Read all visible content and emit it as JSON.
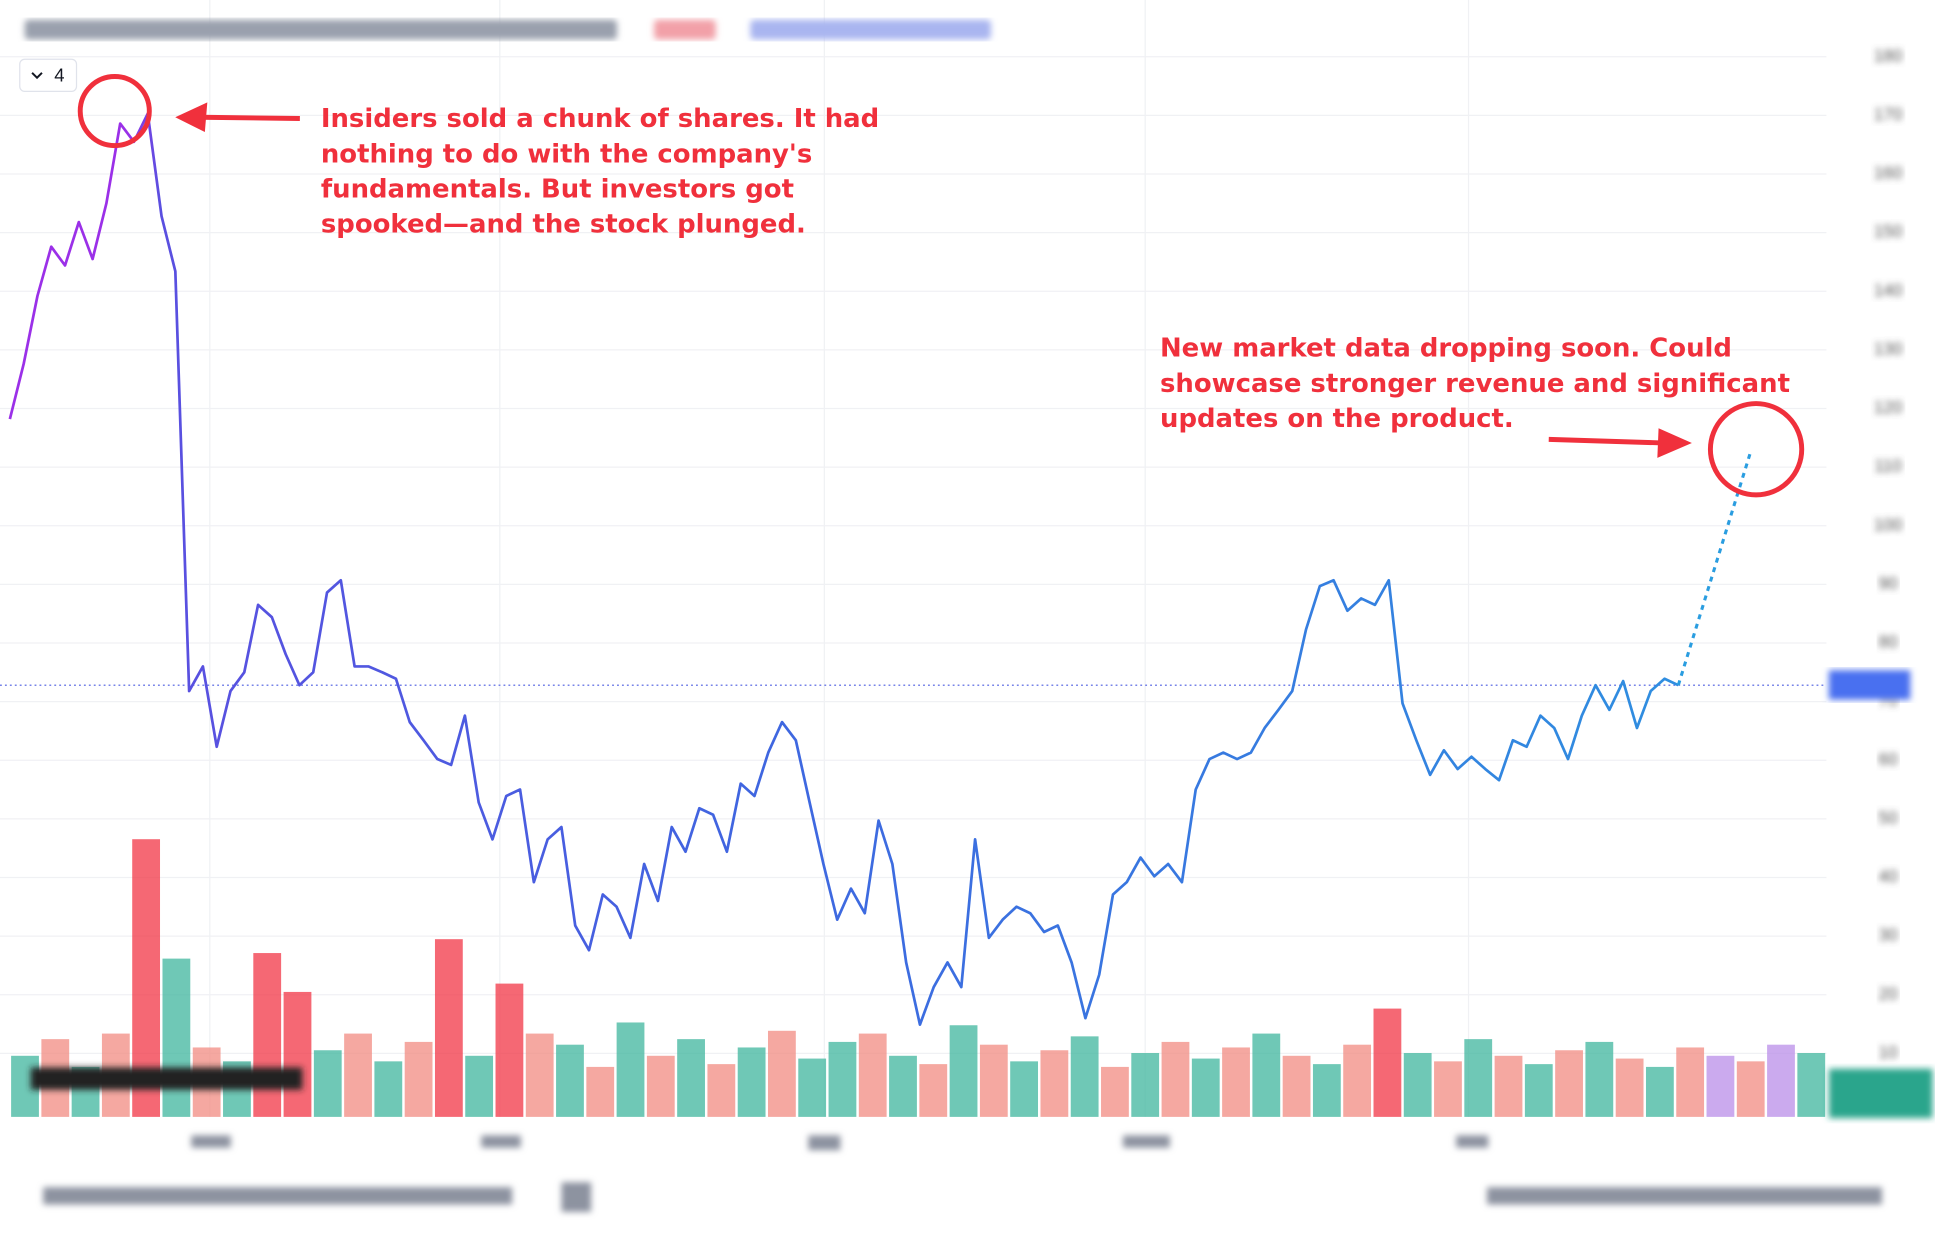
{
  "toolbar": {
    "interval": "4"
  },
  "annotations": [
    {
      "lines": [
        "Insiders sold a chunk of shares. It had",
        "nothing to do with the company's",
        "fundamentals. But investors got",
        "spooked—and the stock plunged."
      ]
    },
    {
      "lines": [
        "New market data dropping soon. Could",
        "showcase stronger revenue and significant",
        "updates on the product."
      ]
    }
  ],
  "chart_data": {
    "type": "line",
    "ylim": [
      0,
      180
    ],
    "yticks": [
      10,
      20,
      30,
      40,
      50,
      60,
      70,
      80,
      90,
      100,
      110,
      120,
      130,
      140,
      150,
      160,
      170,
      180
    ],
    "grid": true,
    "price_line": 72.8,
    "series": [
      {
        "colors": [
          "#9b30e8",
          "#9b30e8",
          "#5a4fe0",
          "#3f66e0",
          "#2f8ee0"
        ],
        "values": [
          118.2,
          127.6,
          139.2,
          147.6,
          144.4,
          151.8,
          145.5,
          155,
          168.6,
          165.5,
          170.3,
          152.8,
          143.4,
          71.8,
          76,
          62.3,
          71.8,
          75,
          86.5,
          84.4,
          78.1,
          72.8,
          75,
          88.6,
          90.7,
          76,
          76,
          75,
          73.9,
          66.5,
          63.4,
          60.2,
          59.2,
          67.6,
          52.8,
          46.5,
          53.9,
          55,
          39.2,
          46.5,
          48.6,
          31.8,
          27.6,
          37.1,
          35,
          29.7,
          42.3,
          36,
          48.6,
          44.4,
          51.8,
          50.7,
          44.4,
          56,
          53.9,
          61.3,
          66.5,
          63.4,
          52.8,
          42.3,
          32.8,
          38.1,
          33.9,
          49.7,
          42.3,
          25.5,
          14.9,
          21.3,
          25.5,
          21.3,
          46.5,
          29.7,
          32.8,
          35,
          33.9,
          30.7,
          31.8,
          25.5,
          16,
          23.4,
          37.1,
          39.2,
          43.4,
          40.2,
          42.3,
          39.2,
          55,
          60.2,
          61.3,
          60.2,
          61.3,
          65.5,
          68.6,
          71.8,
          82.3,
          89.7,
          90.7,
          85.5,
          87.6,
          86.5,
          90.7,
          69.7,
          63.4,
          57.5,
          61.7,
          58.5,
          60.6,
          58.5,
          56.6,
          63.4,
          62.3,
          67.6,
          65.5,
          60.2,
          67.6,
          72.8,
          68.6,
          73.5,
          65.5,
          71.8,
          73.9,
          72.8
        ]
      },
      {
        "color": "#2a9de0",
        "dashed": true,
        "values": [
          72.8,
          112.2
        ]
      }
    ],
    "volume": {
      "vlim": [
        0,
        100
      ],
      "values": [
        22,
        28,
        18,
        30,
        100,
        57,
        25,
        20,
        59,
        45,
        24,
        30,
        20,
        27,
        64,
        22,
        48,
        30,
        26,
        18,
        34,
        22,
        28,
        19,
        25,
        31,
        21,
        27,
        30,
        22,
        19,
        33,
        26,
        20,
        24,
        29,
        18,
        23,
        27,
        21,
        25,
        30,
        22,
        19,
        26,
        39,
        23,
        20,
        28,
        22,
        19,
        24,
        27,
        21,
        18,
        25,
        22,
        20,
        26,
        23
      ],
      "colors": [
        "#3fb59e",
        "#f28b82",
        "#3fb59e",
        "#f28b82",
        "#f23645",
        "#3fb59e",
        "#f28b82",
        "#3fb59e",
        "#f23645",
        "#f23645",
        "#3fb59e",
        "#f28b82",
        "#3fb59e",
        "#f28b82",
        "#f23645",
        "#3fb59e",
        "#f23645",
        "#f28b82",
        "#3fb59e",
        "#f28b82",
        "#3fb59e",
        "#f28b82",
        "#3fb59e",
        "#f28b82",
        "#3fb59e",
        "#f28b82",
        "#3fb59e",
        "#3fb59e",
        "#f28b82",
        "#3fb59e",
        "#f28b82",
        "#3fb59e",
        "#f28b82",
        "#3fb59e",
        "#f28b82",
        "#3fb59e",
        "#f28b82",
        "#3fb59e",
        "#f28b82",
        "#3fb59e",
        "#f28b82",
        "#3fb59e",
        "#f28b82",
        "#3fb59e",
        "#f28b82",
        "#f23645",
        "#3fb59e",
        "#f28b82",
        "#3fb59e",
        "#f28b82",
        "#3fb59e",
        "#f28b82",
        "#3fb59e",
        "#f28b82",
        "#3fb59e",
        "#f28b82",
        "#b98ee8",
        "#f28b82",
        "#b98ee8",
        "#3fb59e"
      ]
    }
  }
}
